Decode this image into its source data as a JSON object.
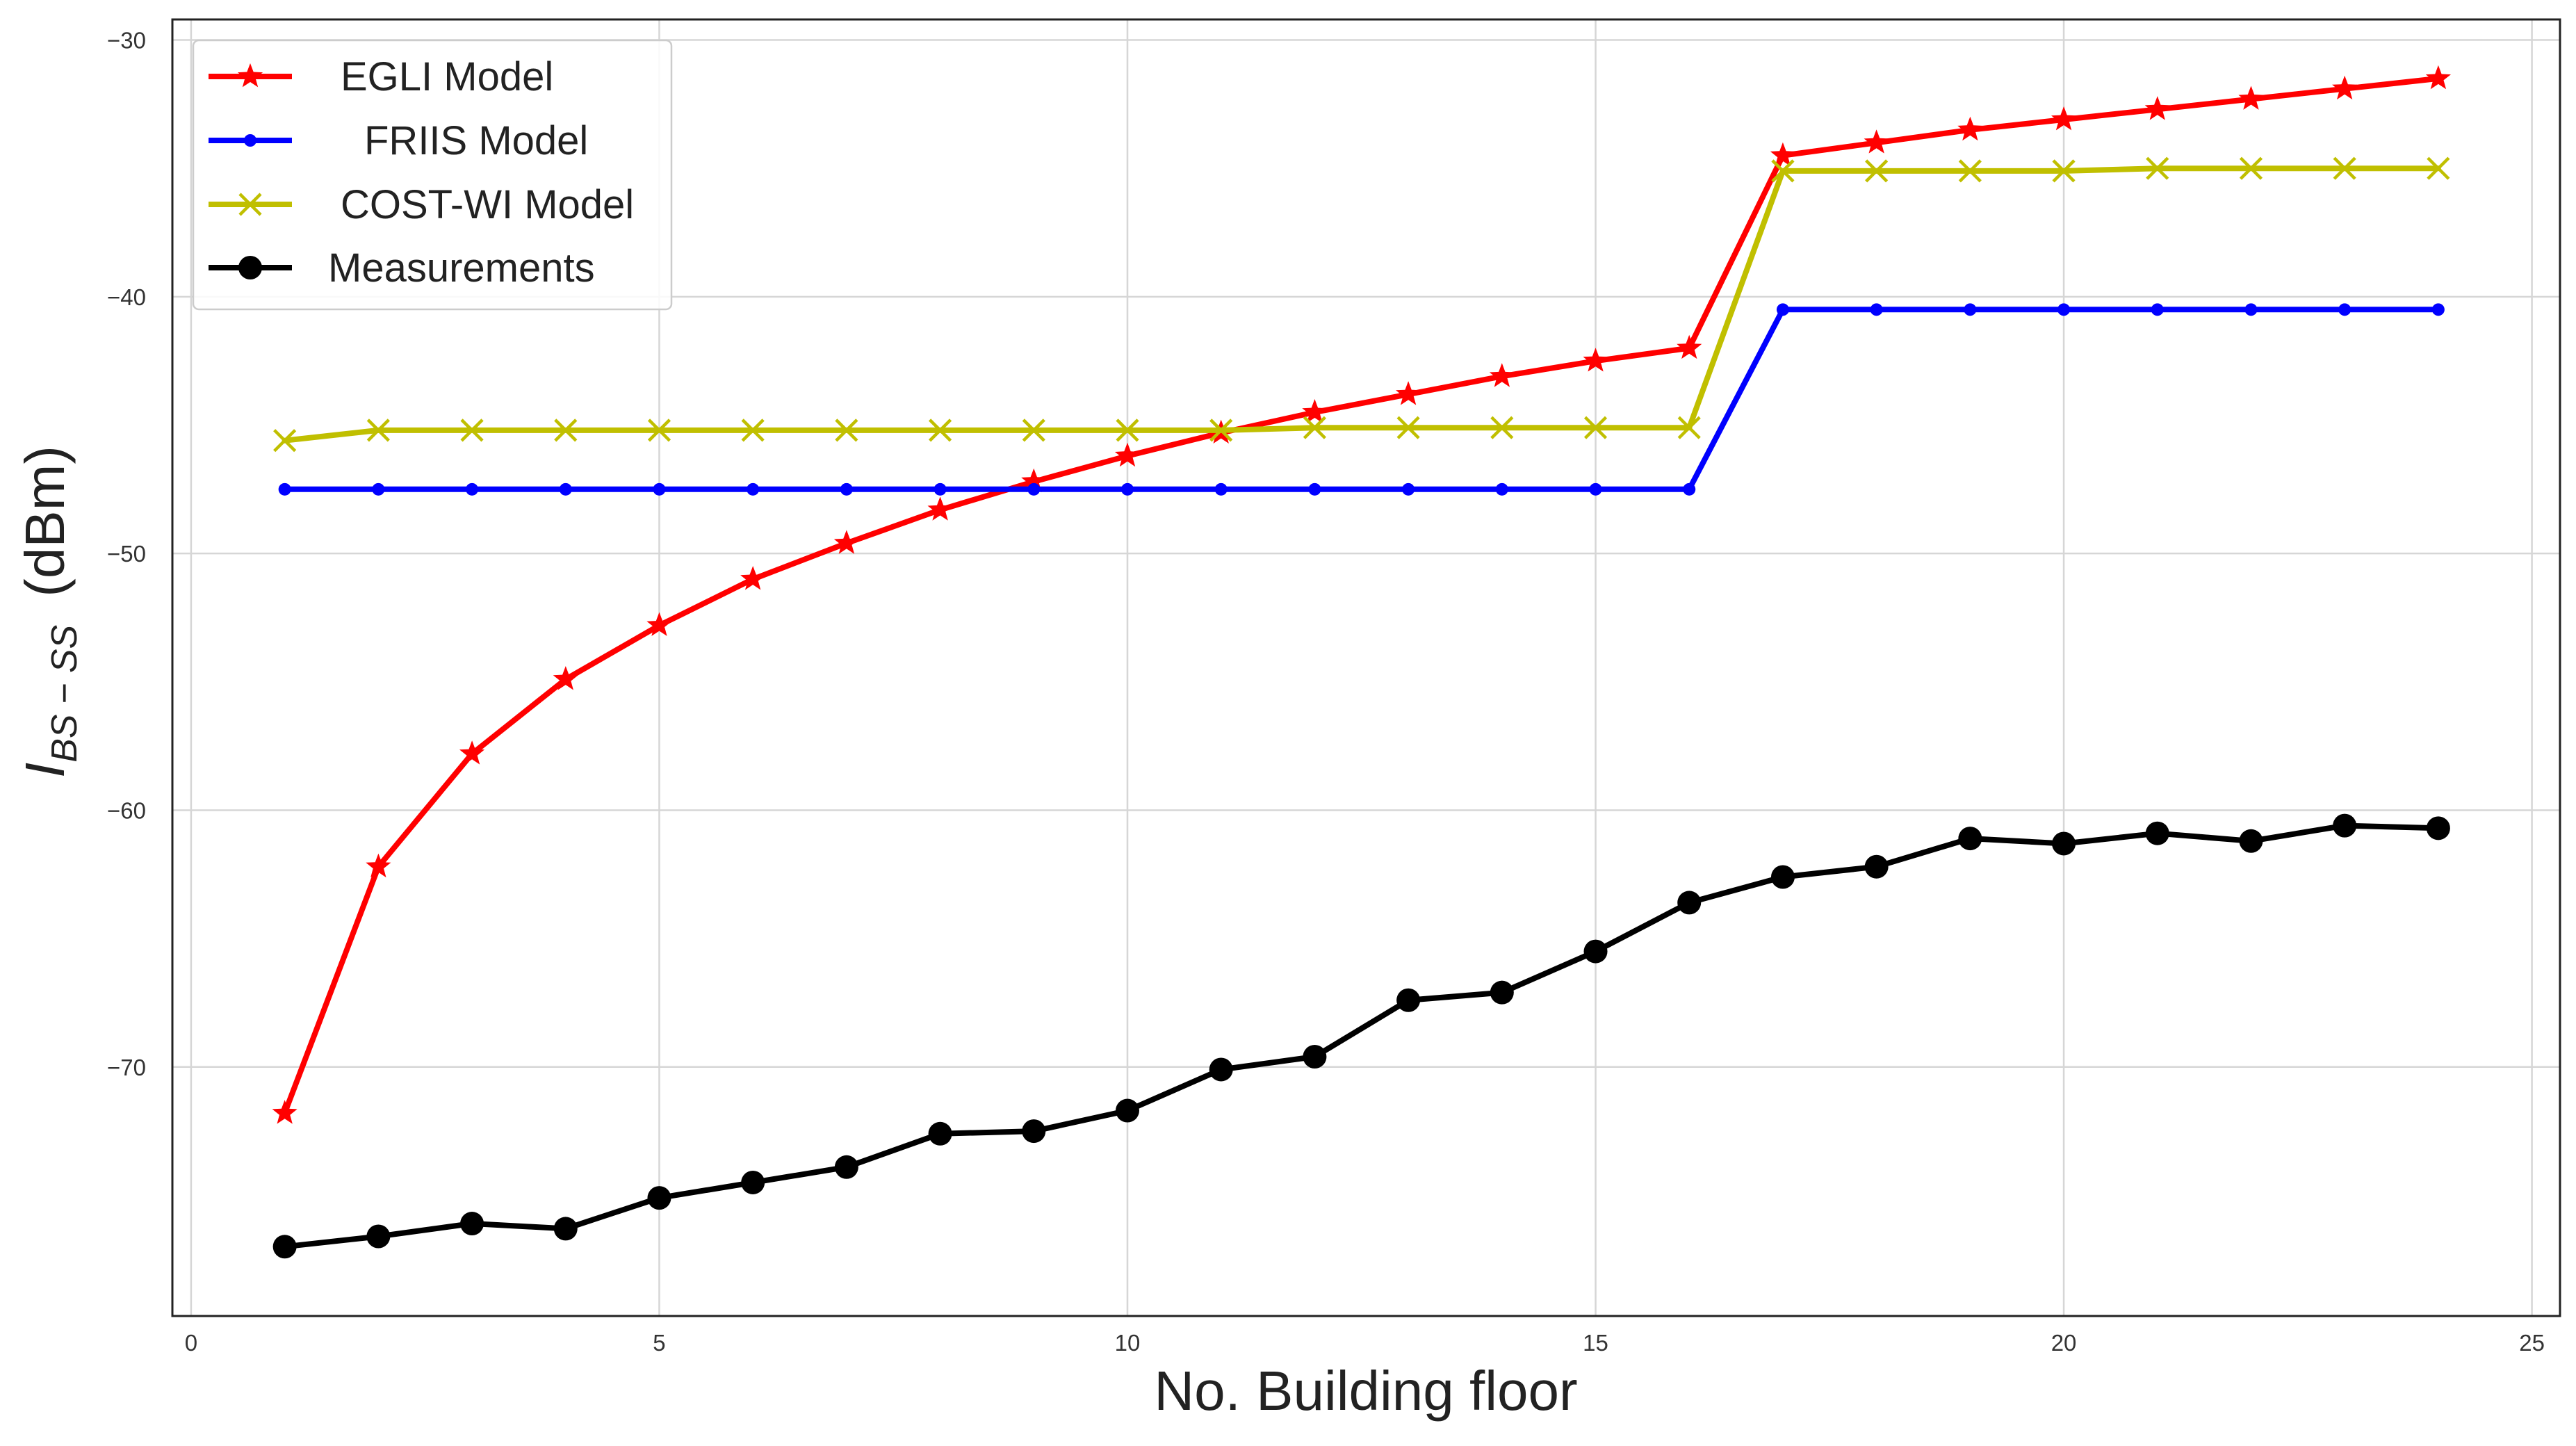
{
  "chart_data": {
    "type": "line",
    "title": "",
    "xlabel": "No. Building floor",
    "ylabel_main": "I",
    "ylabel_sub": "BS − SS",
    "ylabel_unit": "(dBm)",
    "xlim": [
      -0.2,
      25.3
    ],
    "ylim": [
      -79.7,
      -29.2
    ],
    "xticks": [
      0,
      5,
      10,
      15,
      20,
      25
    ],
    "xtick_labels": [
      "0",
      "5",
      "10",
      "15",
      "20",
      "25"
    ],
    "yticks": [
      -70,
      -60,
      -50,
      -40,
      -30
    ],
    "ytick_labels": [
      "−70",
      "−60",
      "−50",
      "−40",
      "−30"
    ],
    "grid": true,
    "legend_position": "top-left",
    "x": [
      1,
      2,
      3,
      4,
      5,
      6,
      7,
      8,
      9,
      10,
      11,
      12,
      13,
      14,
      15,
      16,
      17,
      18,
      19,
      20,
      21,
      22,
      23,
      24
    ],
    "series": [
      {
        "name": "EGLI Model",
        "color": "#ff0000",
        "marker": "star",
        "values": [
          -71.8,
          -62.2,
          -57.8,
          -54.9,
          -52.8,
          -51.0,
          -49.6,
          -48.3,
          -47.2,
          -46.2,
          -45.3,
          -44.5,
          -43.8,
          -43.1,
          -42.5,
          -42.0,
          -34.5,
          -34.0,
          -33.5,
          -33.1,
          -32.7,
          -32.3,
          -31.9,
          -31.5
        ]
      },
      {
        "name": "FRIIS Model",
        "color": "#0000ff",
        "marker": "dot",
        "values": [
          -47.5,
          -47.5,
          -47.5,
          -47.5,
          -47.5,
          -47.5,
          -47.5,
          -47.5,
          -47.5,
          -47.5,
          -47.5,
          -47.5,
          -47.5,
          -47.5,
          -47.5,
          -47.5,
          -40.5,
          -40.5,
          -40.5,
          -40.5,
          -40.5,
          -40.5,
          -40.5,
          -40.5
        ]
      },
      {
        "name": "COST-WI Model",
        "color": "#c0bf00",
        "marker": "x",
        "values": [
          -45.6,
          -45.2,
          -45.2,
          -45.2,
          -45.2,
          -45.2,
          -45.2,
          -45.2,
          -45.2,
          -45.2,
          -45.2,
          -45.1,
          -45.1,
          -45.1,
          -45.1,
          -45.1,
          -35.1,
          -35.1,
          -35.1,
          -35.1,
          -35.0,
          -35.0,
          -35.0,
          -35.0
        ]
      },
      {
        "name": "Measurements",
        "color": "#000000",
        "marker": "circle",
        "values": [
          -77.0,
          -76.6,
          -76.1,
          -76.3,
          -75.1,
          -74.5,
          -73.9,
          -72.6,
          -72.5,
          -71.7,
          -70.1,
          -69.6,
          -67.4,
          -67.1,
          -65.5,
          -63.6,
          -62.6,
          -62.2,
          -61.1,
          -61.3,
          -60.9,
          -61.2,
          -60.6,
          -60.7
        ]
      }
    ]
  }
}
